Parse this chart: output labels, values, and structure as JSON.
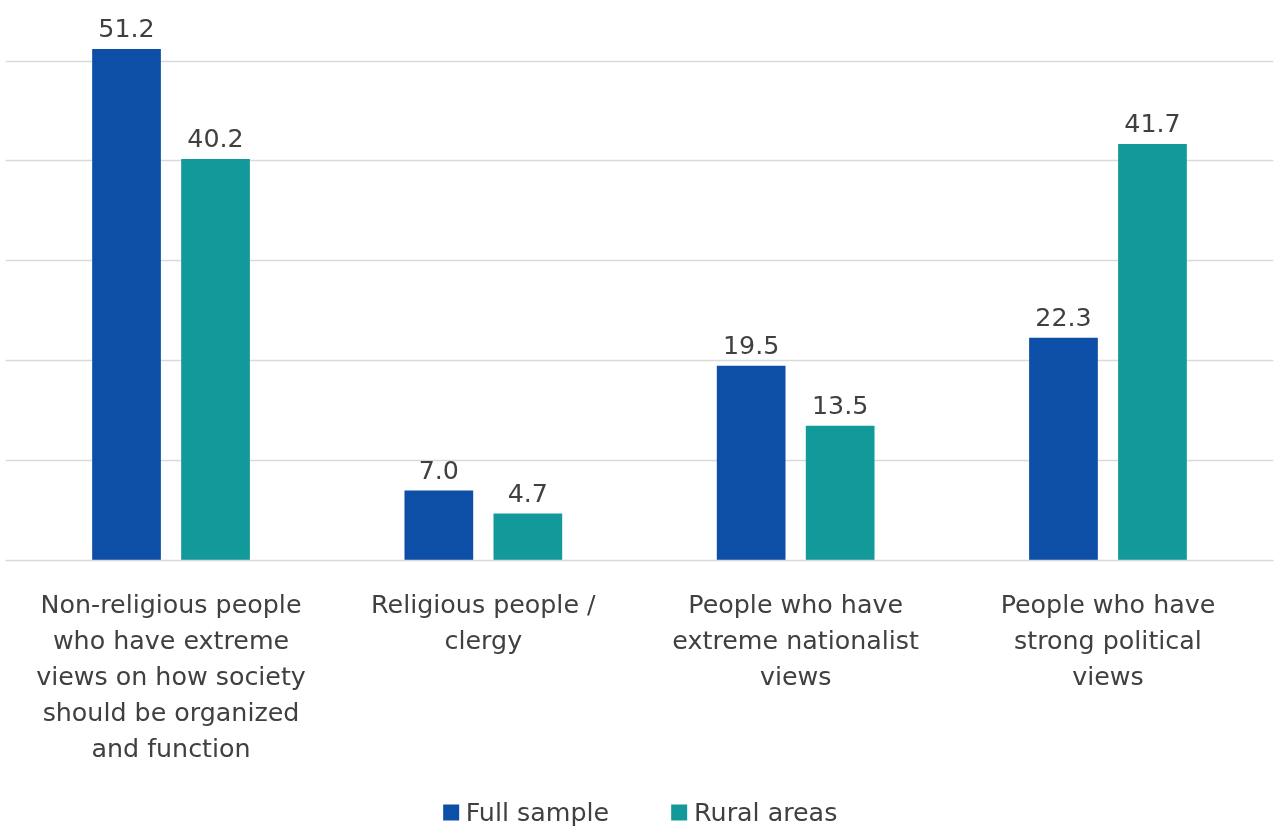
{
  "chart_data": {
    "type": "bar",
    "categories": [
      "Non-religious people who have extreme views on how society should be organized and function",
      "Religious people / clergy",
      "People who have extreme nationalist views",
      "People who have strong political views"
    ],
    "series": [
      {
        "name": "Full sample",
        "color": "#0d4ea6",
        "values": [
          51.2,
          7.0,
          19.5,
          22.3
        ],
        "value_labels": [
          "51.2",
          "7.0",
          "19.5",
          "22.3"
        ]
      },
      {
        "name": "Rural areas",
        "color": "#129a9a",
        "values": [
          40.2,
          4.7,
          13.5,
          41.7
        ],
        "value_labels": [
          "40.2",
          "4.7",
          "13.5",
          "41.7"
        ]
      }
    ],
    "yticks": [
      {
        "value": 0,
        "label": null
      },
      {
        "value": 10,
        "label": null
      },
      {
        "value": 20,
        "label": null
      },
      {
        "value": 30,
        "label": null
      },
      {
        "value": 40,
        "label": null
      },
      {
        "value": 50,
        "label": null
      }
    ],
    "grid": "y",
    "tick_labels": "x",
    "legend": "bottom"
  }
}
